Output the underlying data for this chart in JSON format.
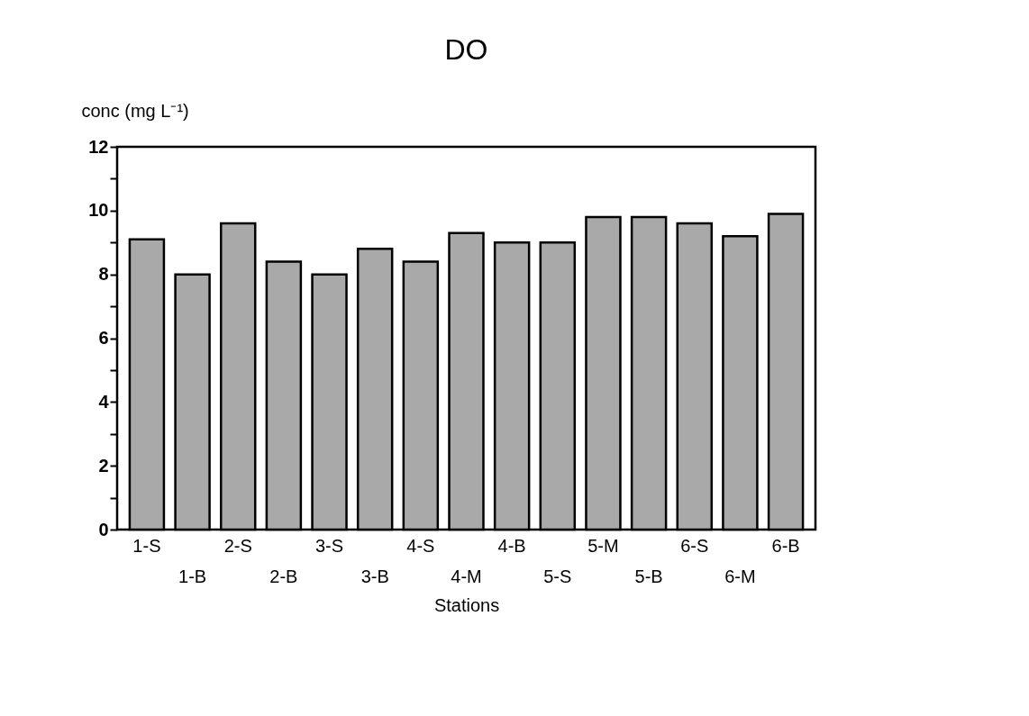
{
  "chart_data": {
    "type": "bar",
    "title": "DO",
    "ylabel": "conc (mg L⁻¹)",
    "xlabel": "Stations",
    "categories": [
      "1-S",
      "1-B",
      "2-S",
      "2-B",
      "3-S",
      "3-B",
      "4-S",
      "4-M",
      "4-B",
      "5-S",
      "5-M",
      "5-B",
      "6-S",
      "6-M",
      "6-B"
    ],
    "values": [
      9.1,
      8.0,
      9.6,
      8.4,
      8.0,
      8.8,
      8.4,
      9.3,
      9.0,
      9.0,
      9.8,
      9.8,
      9.6,
      9.2,
      9.9
    ],
    "color": "#a9a9a9",
    "ylim": [
      0,
      12
    ],
    "yticks": [
      0,
      {
        "value": 1,
        "label": null
      },
      2,
      {
        "value": 3,
        "label": null
      },
      4,
      {
        "value": 5,
        "label": null
      },
      6,
      {
        "value": 7,
        "label": null
      },
      8,
      {
        "value": 9,
        "label": null
      },
      10,
      {
        "value": 11,
        "label": null
      },
      12
    ],
    "grid": false
  }
}
